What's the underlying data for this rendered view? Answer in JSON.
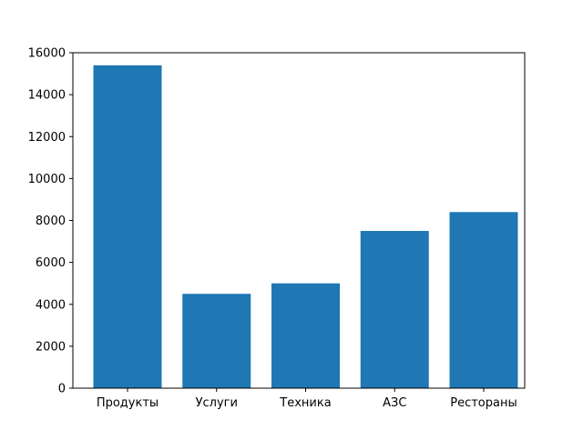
{
  "chart_data": {
    "type": "bar",
    "categories": [
      "Продукты",
      "Услуги",
      "Техника",
      "АЗС",
      "Рестораны"
    ],
    "values": [
      15400,
      4500,
      5000,
      7500,
      8400
    ],
    "ylim": [
      0,
      16000
    ],
    "yticks": [
      0,
      2000,
      4000,
      6000,
      8000,
      10000,
      12000,
      14000,
      16000
    ],
    "title": "",
    "xlabel": "",
    "ylabel": "",
    "bar_color": "#1f77b4",
    "grid": false
  }
}
